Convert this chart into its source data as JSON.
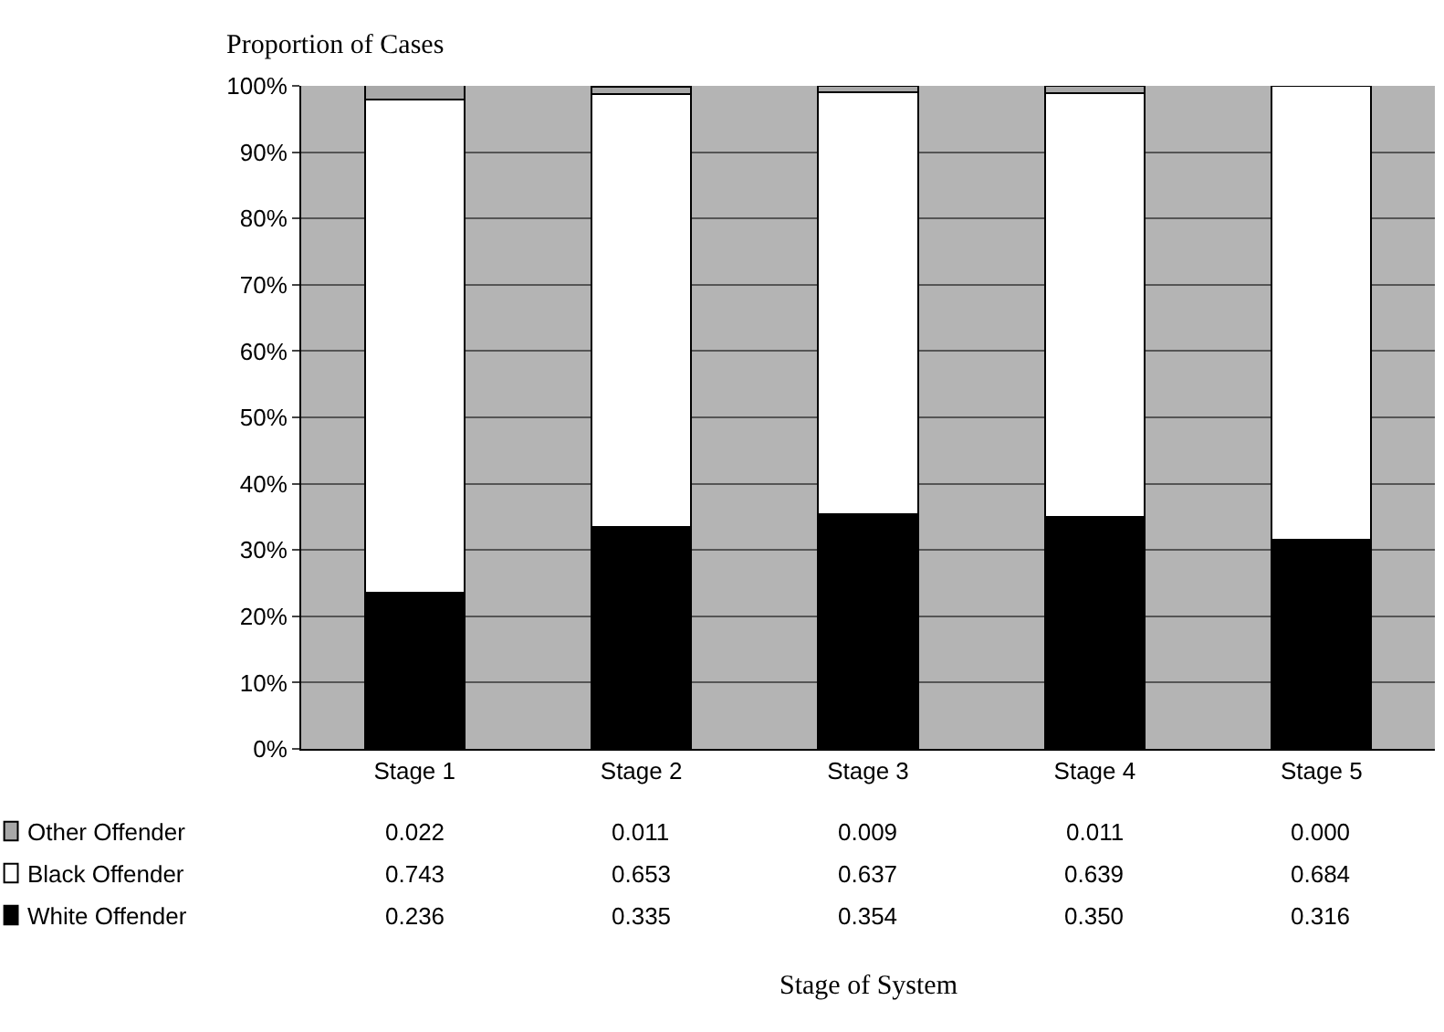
{
  "chart_data": {
    "type": "bar",
    "stacked": true,
    "ylabel": "Proportion of Cases",
    "annotations": [
      "Stage of System"
    ],
    "categories": [
      "Stage 1",
      "Stage 2",
      "Stage 3",
      "Stage 4",
      "Stage 5"
    ],
    "series": [
      {
        "name": "White Offender",
        "color": "#000000",
        "values": [
          0.236,
          0.335,
          0.354,
          0.35,
          0.316
        ],
        "value_labels": [
          "0.236",
          "0.335",
          "0.354",
          "0.350",
          "0.316"
        ]
      },
      {
        "name": "Black Offender",
        "color": "#ffffff",
        "values": [
          0.743,
          0.653,
          0.637,
          0.639,
          0.684
        ],
        "value_labels": [
          "0.743",
          "0.653",
          "0.637",
          "0.639",
          "0.684"
        ]
      },
      {
        "name": "Other Offender",
        "color": "#a8a8a8",
        "values": [
          0.022,
          0.011,
          0.009,
          0.011,
          0.0
        ],
        "value_labels": [
          "0.022",
          "0.011",
          "0.009",
          "0.011",
          "0.000"
        ]
      }
    ],
    "ylim": [
      0,
      1
    ],
    "yticks": [
      {
        "value": 0,
        "label": "0%"
      },
      {
        "value": 0.1,
        "label": "10%"
      },
      {
        "value": 0.2,
        "label": "20%"
      },
      {
        "value": 0.3,
        "label": "30%"
      },
      {
        "value": 0.4,
        "label": "40%"
      },
      {
        "value": 0.5,
        "label": "50%"
      },
      {
        "value": 0.6,
        "label": "60%"
      },
      {
        "value": 0.7,
        "label": "70%"
      },
      {
        "value": 0.8,
        "label": "80%"
      },
      {
        "value": 0.9,
        "label": "90%"
      },
      {
        "value": 1,
        "label": "100%"
      }
    ],
    "grid": "y",
    "legend": "bottom left"
  }
}
